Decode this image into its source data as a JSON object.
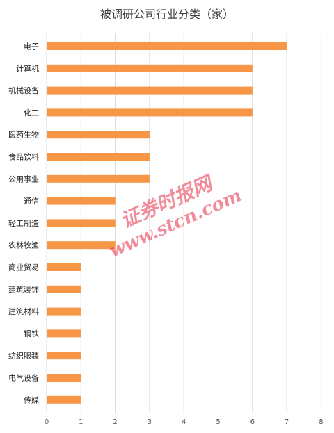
{
  "chart_data": {
    "type": "bar",
    "orientation": "horizontal",
    "title": "被调研公司行业分类（家）",
    "categories": [
      "电子",
      "计算机",
      "机械设备",
      "化工",
      "医药生物",
      "食品饮料",
      "公用事业",
      "通信",
      "轻工制造",
      "农林牧渔",
      "商业贸易",
      "建筑装饰",
      "建筑材料",
      "钢铁",
      "纺织服装",
      "电气设备",
      "传媒"
    ],
    "values": [
      7,
      6,
      6,
      6,
      3,
      3,
      3,
      2,
      2,
      2,
      1,
      1,
      1,
      1,
      1,
      1,
      1
    ],
    "xlim": [
      0,
      8
    ],
    "xticks": [
      0,
      1,
      2,
      3,
      4,
      5,
      6,
      7,
      8
    ],
    "grid": "vertical",
    "legend": "none",
    "colors": {
      "bar": "#F79646",
      "grid": "#D9D9D9",
      "watermark": "#E8304A"
    }
  },
  "watermark": {
    "line1": "证券时报网",
    "line2": "www.stcn.com"
  }
}
